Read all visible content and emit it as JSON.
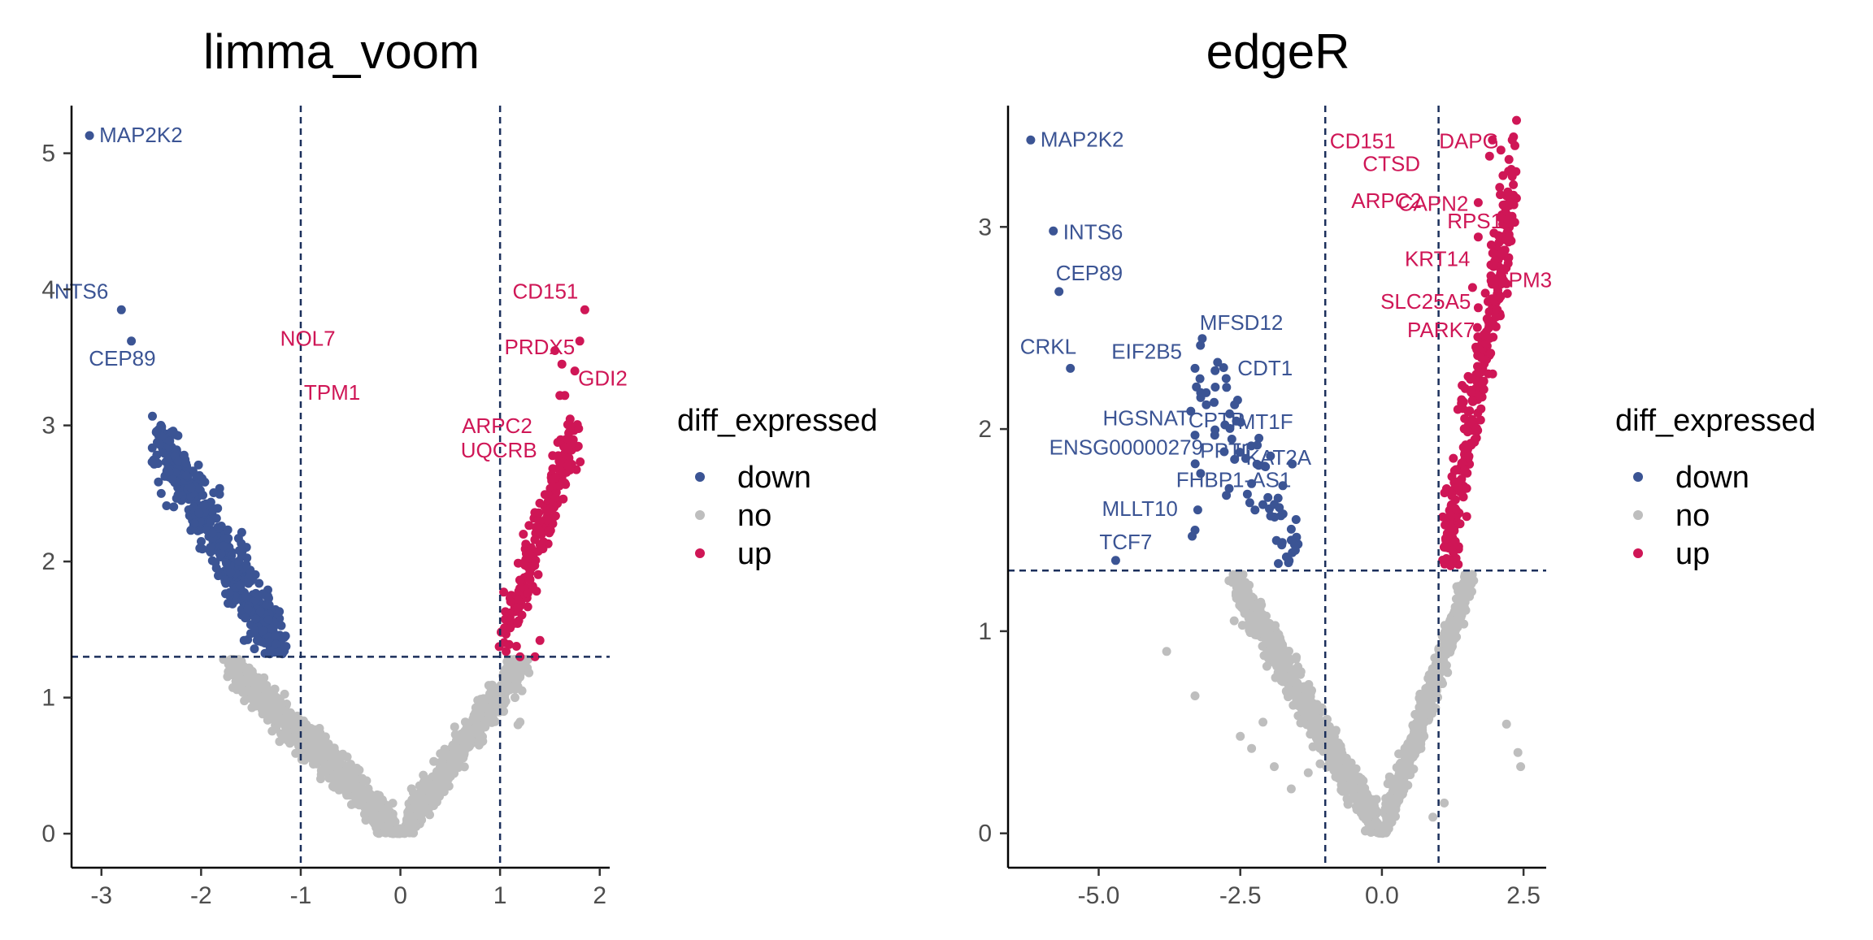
{
  "colors": {
    "down": "#3b5494",
    "no": "#bebebe",
    "up": "#cf1656",
    "threshold": "#1b2f5b"
  },
  "legend": {
    "title": "diff_expressed",
    "items": [
      {
        "key": "down",
        "label": "down"
      },
      {
        "key": "no",
        "label": "no"
      },
      {
        "key": "up",
        "label": "up"
      }
    ]
  },
  "chart_data": [
    {
      "type": "scatter",
      "title": "limma_voom",
      "xlabel": "",
      "ylabel": "",
      "xlim": [
        -3.3,
        2.1
      ],
      "ylim": [
        -0.25,
        5.35
      ],
      "x_ticks": [
        -3,
        -2,
        -1,
        0,
        1,
        2
      ],
      "x_tick_labels": [
        "-3",
        "-2",
        "-1",
        "0",
        "1",
        "2"
      ],
      "y_ticks": [
        0,
        1,
        2,
        3,
        4,
        5
      ],
      "y_tick_labels": [
        "0",
        "1",
        "2",
        "3",
        "4",
        "5"
      ],
      "thresholds": {
        "x": [
          -1,
          1
        ],
        "y": 1.3
      },
      "grid": false,
      "legend_position": "right",
      "bulk": {
        "down": {
          "x_range": [
            -2.45,
            -1.2
          ],
          "y_at_x_min": 2.95,
          "y_at_x_max": 1.3,
          "spread": 0.25,
          "count": 520
        },
        "up": {
          "x_range": [
            1.02,
            1.75
          ],
          "y_at_x_min": 1.35,
          "y_at_x_max": 2.95,
          "spread": 0.22,
          "count": 230
        },
        "no_left": {
          "x_range": [
            -1.7,
            0.0
          ],
          "y_at_x_min": 1.25,
          "y_at_x_max": 0.0,
          "spread": 0.12,
          "count": 900
        },
        "no_right": {
          "x_range": [
            0.0,
            1.25
          ],
          "y_at_x_min": 0.0,
          "y_at_x_max": 1.3,
          "spread": 0.12,
          "count": 700
        }
      },
      "labeled_points": [
        {
          "gene": "MAP2K2",
          "x": -3.12,
          "y": 5.13,
          "group": "down"
        },
        {
          "gene": "INTS6",
          "x": -2.8,
          "y": 3.85,
          "group": "down"
        },
        {
          "gene": "CEP89",
          "x": -2.7,
          "y": 3.62,
          "group": "down"
        },
        {
          "gene": "CD151",
          "x": 1.85,
          "y": 3.85,
          "group": "up"
        },
        {
          "gene": "PRDX5",
          "x": 1.8,
          "y": 3.62,
          "group": "up"
        },
        {
          "gene": "NOL7",
          "x": 1.55,
          "y": 3.55,
          "group": "up"
        },
        {
          "gene": "TPM1",
          "x": 1.62,
          "y": 3.45,
          "group": "up"
        },
        {
          "gene": "GDI2",
          "x": 1.75,
          "y": 3.4,
          "group": "up"
        },
        {
          "gene": "ARPC2",
          "x": 1.65,
          "y": 3.22,
          "group": "up"
        },
        {
          "gene": "UQCRB",
          "x": 1.6,
          "y": 3.22,
          "group": "up"
        }
      ],
      "extra_points": [
        {
          "x": -2.4,
          "y": 2.5,
          "group": "down"
        },
        {
          "x": -2.45,
          "y": 2.95,
          "group": "down"
        },
        {
          "x": -2.3,
          "y": 2.95,
          "group": "down"
        },
        {
          "x": 1.4,
          "y": 1.42,
          "group": "up"
        },
        {
          "x": 1.35,
          "y": 1.3,
          "group": "up"
        },
        {
          "x": 1.2,
          "y": 1.3,
          "group": "up"
        },
        {
          "x": 1.22,
          "y": 1.05,
          "group": "no"
        },
        {
          "x": 1.15,
          "y": 1.0,
          "group": "no"
        },
        {
          "x": 1.18,
          "y": 0.8,
          "group": "no"
        },
        {
          "x": 1.2,
          "y": 0.82,
          "group": "no"
        }
      ]
    },
    {
      "type": "scatter",
      "title": "edgeR",
      "xlabel": "",
      "ylabel": "",
      "xlim": [
        -6.6,
        2.9
      ],
      "ylim": [
        -0.17,
        3.6
      ],
      "x_ticks": [
        -5,
        -2.5,
        0,
        2.5
      ],
      "x_tick_labels": [
        "-5.0",
        "-2.5",
        "0.0",
        "2.5"
      ],
      "y_ticks": [
        0,
        1,
        2,
        3
      ],
      "y_tick_labels": [
        "0",
        "1",
        "2",
        "3"
      ],
      "thresholds": {
        "x": [
          -1,
          1
        ],
        "y": 1.3
      },
      "grid": false,
      "legend_position": "right",
      "bulk": {
        "down": {
          "x_range": [
            -3.4,
            -1.5
          ],
          "y_at_x_min": 2.3,
          "y_at_x_max": 1.35,
          "spread": 0.35,
          "count": 60
        },
        "up": {
          "x_range": [
            1.1,
            2.35
          ],
          "y_at_x_min": 1.35,
          "y_at_x_max": 3.2,
          "spread": 0.3,
          "count": 300
        },
        "no_left": {
          "x_range": [
            -2.6,
            0.0
          ],
          "y_at_x_min": 1.25,
          "y_at_x_max": 0.0,
          "spread": 0.1,
          "count": 900
        },
        "no_right": {
          "x_range": [
            0.0,
            1.6
          ],
          "y_at_x_min": 0.0,
          "y_at_x_max": 1.3,
          "spread": 0.1,
          "count": 700
        }
      },
      "labeled_points": [
        {
          "gene": "MAP2K2",
          "x": -6.2,
          "y": 3.43,
          "group": "down"
        },
        {
          "gene": "INTS6",
          "x": -5.8,
          "y": 2.98,
          "group": "down"
        },
        {
          "gene": "CEP89",
          "x": -5.7,
          "y": 2.68,
          "group": "down"
        },
        {
          "gene": "CRKL",
          "x": -5.5,
          "y": 2.3,
          "group": "down"
        },
        {
          "gene": "EIF2B5",
          "x": -3.3,
          "y": 2.3,
          "group": "down"
        },
        {
          "gene": "MFSD12",
          "x": -2.9,
          "y": 2.33,
          "group": "down"
        },
        {
          "gene": "CDT1",
          "x": -2.75,
          "y": 2.25,
          "group": "down"
        },
        {
          "gene": "HGSNAT",
          "x": -3.2,
          "y": 2.18,
          "group": "down"
        },
        {
          "gene": "CPTP",
          "x": -3.1,
          "y": 2.12,
          "group": "down"
        },
        {
          "gene": "MT1F",
          "x": -2.6,
          "y": 2.12,
          "group": "down"
        },
        {
          "gene": "ENSG00000279",
          "x": -3.3,
          "y": 1.97,
          "group": "down"
        },
        {
          "gene": "PPT1",
          "x": -2.95,
          "y": 1.97,
          "group": "down"
        },
        {
          "gene": "IL",
          "x": -2.65,
          "y": 1.95,
          "group": "down"
        },
        {
          "gene": "KAT2A",
          "x": -2.2,
          "y": 1.92,
          "group": "down"
        },
        {
          "gene": "FHBP1-AS1",
          "x": -2.6,
          "y": 1.85,
          "group": "down"
        },
        {
          "gene": "MLLT10",
          "x": -3.2,
          "y": 1.78,
          "group": "down"
        },
        {
          "gene": "TCF7",
          "x": -4.7,
          "y": 1.35,
          "group": "down"
        },
        {
          "gene": "CD151",
          "x": 1.95,
          "y": 3.43,
          "group": "up"
        },
        {
          "gene": "CTSD",
          "x": 2.1,
          "y": 3.38,
          "group": "up"
        },
        {
          "gene": "DAPG",
          "x": 2.3,
          "y": 3.43,
          "group": "up"
        },
        {
          "gene": "ARPC2",
          "x": 1.9,
          "y": 3.35,
          "group": "up"
        },
        {
          "gene": "RPS17",
          "x": 2.3,
          "y": 3.25,
          "group": "up"
        },
        {
          "gene": "CAPN2",
          "x": 1.7,
          "y": 3.12,
          "group": "up"
        },
        {
          "gene": "KRT14",
          "x": 1.7,
          "y": 2.95,
          "group": "up"
        },
        {
          "gene": "SLC25A5",
          "x": 1.6,
          "y": 2.7,
          "group": "up"
        },
        {
          "gene": "TPM3",
          "x": 1.95,
          "y": 2.75,
          "group": "up"
        },
        {
          "gene": "PARK7",
          "x": 1.7,
          "y": 2.6,
          "group": "up"
        }
      ],
      "extra_points": [
        {
          "x": -3.8,
          "y": 0.9,
          "group": "no"
        },
        {
          "x": -3.3,
          "y": 0.68,
          "group": "no"
        },
        {
          "x": -2.1,
          "y": 0.55,
          "group": "no"
        },
        {
          "x": -2.5,
          "y": 0.48,
          "group": "no"
        },
        {
          "x": -2.3,
          "y": 0.42,
          "group": "no"
        },
        {
          "x": -1.6,
          "y": 0.22,
          "group": "no"
        },
        {
          "x": -1.3,
          "y": 0.3,
          "group": "no"
        },
        {
          "x": -1.9,
          "y": 0.33,
          "group": "no"
        },
        {
          "x": 2.2,
          "y": 0.54,
          "group": "no"
        },
        {
          "x": 2.4,
          "y": 0.4,
          "group": "no"
        },
        {
          "x": 2.45,
          "y": 0.33,
          "group": "no"
        },
        {
          "x": 1.1,
          "y": 0.15,
          "group": "no"
        },
        {
          "x": 0.9,
          "y": 0.08,
          "group": "no"
        },
        {
          "x": -2.7,
          "y": 1.25,
          "group": "no"
        },
        {
          "x": -2.5,
          "y": 1.18,
          "group": "no"
        },
        {
          "x": -3.3,
          "y": 1.5,
          "group": "down"
        },
        {
          "x": -3.35,
          "y": 1.47,
          "group": "down"
        },
        {
          "x": -3.25,
          "y": 1.6,
          "group": "down"
        },
        {
          "x": -2.3,
          "y": 1.73,
          "group": "down"
        },
        {
          "x": -1.75,
          "y": 1.72,
          "group": "down"
        },
        {
          "x": -1.6,
          "y": 1.45,
          "group": "down"
        }
      ]
    }
  ]
}
